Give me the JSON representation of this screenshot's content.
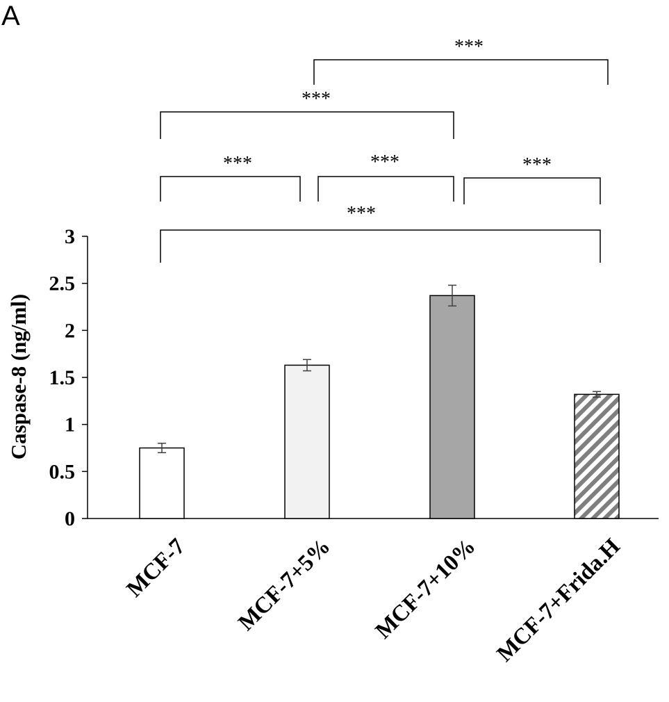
{
  "panel_label": "A",
  "chart_data": {
    "type": "bar",
    "title": "",
    "xlabel": "",
    "ylabel": "Caspase-8 (ng/ml)",
    "ylim": [
      0,
      3
    ],
    "yticks": [
      "0",
      "0.5",
      "1",
      "1.5",
      "2",
      "2.5",
      "3"
    ],
    "grid": false,
    "categories": [
      "MCF-7",
      "MCF-7+5%",
      "MCF-7+10%",
      "MCF-7+Frida.H"
    ],
    "values": [
      0.75,
      1.63,
      2.37,
      1.32
    ],
    "errors": [
      0.05,
      0.06,
      0.11,
      0.03
    ],
    "bar_styles": [
      {
        "fill": "#ffffff",
        "pattern": "none"
      },
      {
        "fill": "#f2f2f2",
        "pattern": "none"
      },
      {
        "fill": "#a6a6a6",
        "pattern": "none"
      },
      {
        "fill": "#ffffff",
        "pattern": "diagonal-hatch",
        "hatch_color": "#7f7f7f"
      }
    ],
    "significance": [
      {
        "from": 1,
        "to": 3,
        "label": "***"
      },
      {
        "from": 0,
        "to": 2,
        "label": "***"
      },
      {
        "from": 0,
        "to": 1,
        "label": "***"
      },
      {
        "from": 1,
        "to": 2,
        "label": "***"
      },
      {
        "from": 2,
        "to": 3,
        "label": "***"
      },
      {
        "from": 0,
        "to": 3,
        "label": "***"
      }
    ]
  }
}
